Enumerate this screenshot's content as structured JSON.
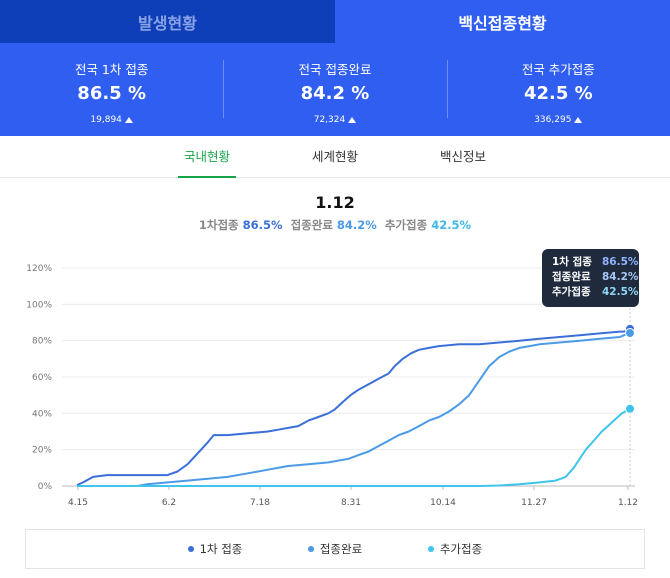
{
  "top_tabs": [
    {
      "label": "발생현황",
      "active": false
    },
    {
      "label": "백신접종현황",
      "active": true
    }
  ],
  "stats": [
    {
      "label": "전국 1차 접종",
      "value": "86.5 %",
      "delta": "19,894"
    },
    {
      "label": "전국 접종완료",
      "value": "84.2 %",
      "delta": "72,324"
    },
    {
      "label": "전국 추가접종",
      "value": "42.5 %",
      "delta": "336,295"
    }
  ],
  "sub_tabs": [
    {
      "label": "국내현황",
      "active": true
    },
    {
      "label": "세계현황",
      "active": false
    },
    {
      "label": "백신정보",
      "active": false
    }
  ],
  "summary": {
    "date": "1.12",
    "first_label": "1차접종",
    "first_value": "86.5%",
    "full_label": "접종완료",
    "full_value": "84.2%",
    "booster_label": "추가접종",
    "booster_value": "42.5%"
  },
  "tooltip": {
    "rows": [
      {
        "label": "1차 접종",
        "value": "86.5%"
      },
      {
        "label": "접종완료",
        "value": "84.2%"
      },
      {
        "label": "추가접종",
        "value": "42.5%"
      }
    ]
  },
  "colors": {
    "first": "#3b6fd8",
    "full": "#4a9ae8",
    "booster": "#3fc4ec",
    "grid": "#ececec"
  },
  "chart_data": {
    "type": "line",
    "x_ticks": [
      "4.15",
      "6.2",
      "7.18",
      "8.31",
      "10.14",
      "11.27",
      "1.12"
    ],
    "y_ticks": [
      "0%",
      "20%",
      "40%",
      "60%",
      "80%",
      "100%",
      "120%"
    ],
    "ylim": [
      0,
      120
    ],
    "grid": true,
    "legend_position": "bottom",
    "series": [
      {
        "name": "1차 접종",
        "points": [
          [
            0,
            0.5
          ],
          [
            3,
            2
          ],
          [
            8,
            5
          ],
          [
            15,
            6
          ],
          [
            25,
            6
          ],
          [
            35,
            6
          ],
          [
            45,
            6
          ],
          [
            50,
            8
          ],
          [
            55,
            12
          ],
          [
            60,
            18
          ],
          [
            65,
            24
          ],
          [
            68,
            28
          ],
          [
            75,
            28
          ],
          [
            85,
            29
          ],
          [
            95,
            30
          ],
          [
            100,
            31
          ],
          [
            110,
            33
          ],
          [
            115,
            36
          ],
          [
            120,
            38
          ],
          [
            125,
            40
          ],
          [
            128,
            42
          ],
          [
            132,
            46
          ],
          [
            136,
            50
          ],
          [
            140,
            53
          ],
          [
            145,
            56
          ],
          [
            150,
            59
          ],
          [
            155,
            62
          ],
          [
            158,
            66
          ],
          [
            162,
            70
          ],
          [
            166,
            73
          ],
          [
            170,
            75
          ],
          [
            175,
            76
          ],
          [
            180,
            77
          ],
          [
            190,
            78
          ],
          [
            200,
            78
          ],
          [
            210,
            79
          ],
          [
            220,
            80
          ],
          [
            230,
            81
          ],
          [
            240,
            82
          ],
          [
            250,
            83
          ],
          [
            260,
            84
          ],
          [
            270,
            85
          ],
          [
            272,
            85
          ],
          [
            275,
            86.5
          ]
        ]
      },
      {
        "name": "접종완료",
        "points": [
          [
            0,
            0
          ],
          [
            15,
            0
          ],
          [
            30,
            0
          ],
          [
            35,
            1
          ],
          [
            45,
            2
          ],
          [
            55,
            3
          ],
          [
            65,
            4
          ],
          [
            75,
            5
          ],
          [
            85,
            7
          ],
          [
            95,
            9
          ],
          [
            105,
            11
          ],
          [
            115,
            12
          ],
          [
            125,
            13
          ],
          [
            135,
            15
          ],
          [
            140,
            17
          ],
          [
            145,
            19
          ],
          [
            150,
            22
          ],
          [
            155,
            25
          ],
          [
            160,
            28
          ],
          [
            165,
            30
          ],
          [
            170,
            33
          ],
          [
            175,
            36
          ],
          [
            180,
            38
          ],
          [
            185,
            41
          ],
          [
            190,
            45
          ],
          [
            195,
            50
          ],
          [
            200,
            58
          ],
          [
            205,
            66
          ],
          [
            210,
            71
          ],
          [
            215,
            74
          ],
          [
            220,
            76
          ],
          [
            225,
            77
          ],
          [
            230,
            78
          ],
          [
            240,
            79
          ],
          [
            250,
            80
          ],
          [
            260,
            81
          ],
          [
            270,
            82
          ],
          [
            272,
            83
          ],
          [
            275,
            84.2
          ]
        ]
      },
      {
        "name": "추가접종",
        "points": [
          [
            0,
            0
          ],
          [
            100,
            0
          ],
          [
            150,
            0
          ],
          [
            200,
            0
          ],
          [
            210,
            0.3
          ],
          [
            220,
            1
          ],
          [
            230,
            2
          ],
          [
            238,
            3
          ],
          [
            243,
            5
          ],
          [
            247,
            10
          ],
          [
            250,
            15
          ],
          [
            253,
            20
          ],
          [
            257,
            25
          ],
          [
            261,
            30
          ],
          [
            265,
            34
          ],
          [
            268,
            37
          ],
          [
            271,
            40
          ],
          [
            275,
            42.5
          ]
        ]
      }
    ]
  },
  "legend": [
    {
      "label": "1차 접종"
    },
    {
      "label": "접종완료"
    },
    {
      "label": "추가접종"
    }
  ]
}
